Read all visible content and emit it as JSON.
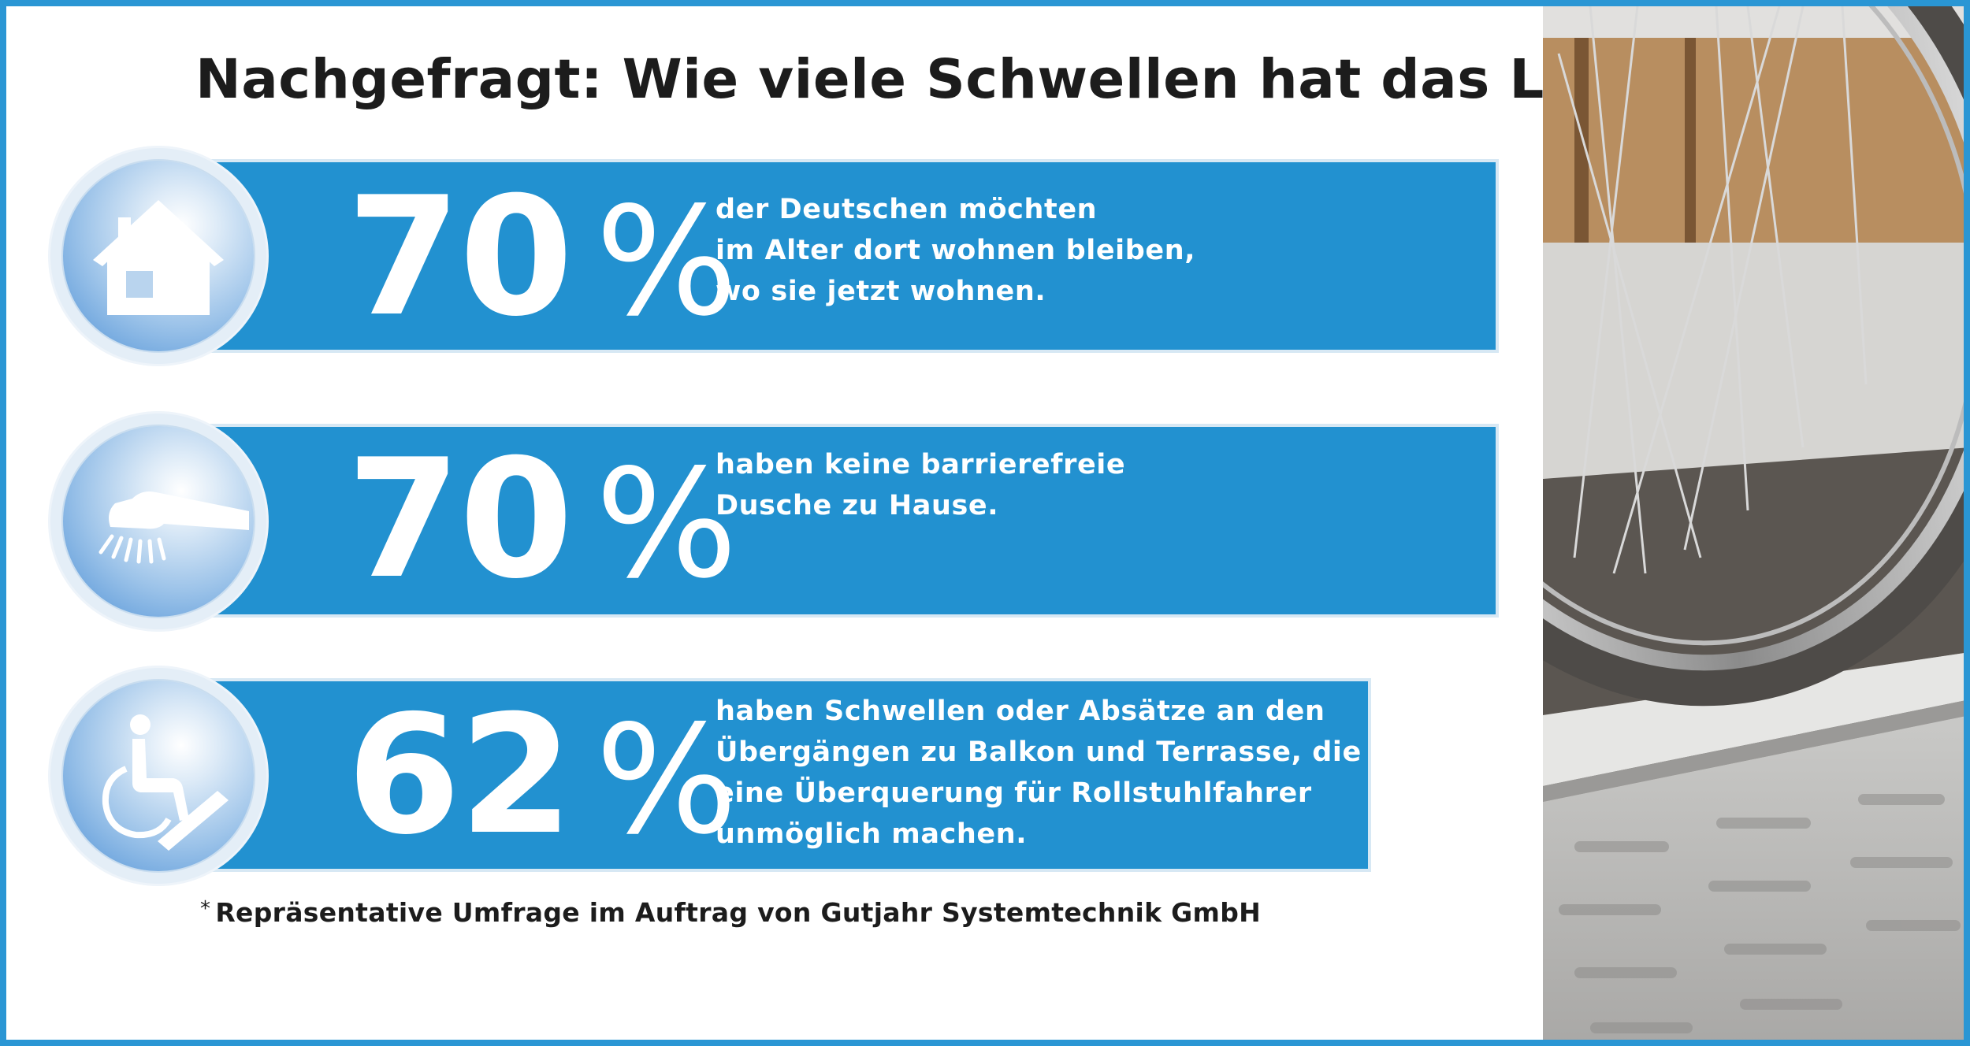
{
  "title": "Nachgefragt: Wie viele Schwellen hat das Land?",
  "title_marker": "*",
  "stats": [
    {
      "icon": "house-icon",
      "number": "70",
      "unit": "%",
      "value_percent": 70,
      "lines": [
        "der Deutschen möchten",
        "im Alter dort wohnen bleiben,",
        "wo sie jetzt wohnen."
      ]
    },
    {
      "icon": "shower-icon",
      "number": "70",
      "unit": "%",
      "value_percent": 70,
      "lines": [
        "haben keine barrierefreie",
        "Dusche zu Hause."
      ]
    },
    {
      "icon": "wheelchair-icon",
      "number": "62",
      "unit": "%",
      "value_percent": 62,
      "lines": [
        "haben Schwellen oder Absätze an den",
        "Übergängen zu Balkon und Terrasse, die",
        "eine Überquerung für Rollstuhlfahrer",
        "unmöglich machen."
      ]
    }
  ],
  "footnote": {
    "marker": "*",
    "text": "Repräsentative Umfrage im Auftrag von Gutjahr Systemtechnik GmbH"
  },
  "colors": {
    "bar_blue": "#2291d0",
    "frame_blue": "#2a96d4",
    "text_dark": "#1c1c1c"
  }
}
